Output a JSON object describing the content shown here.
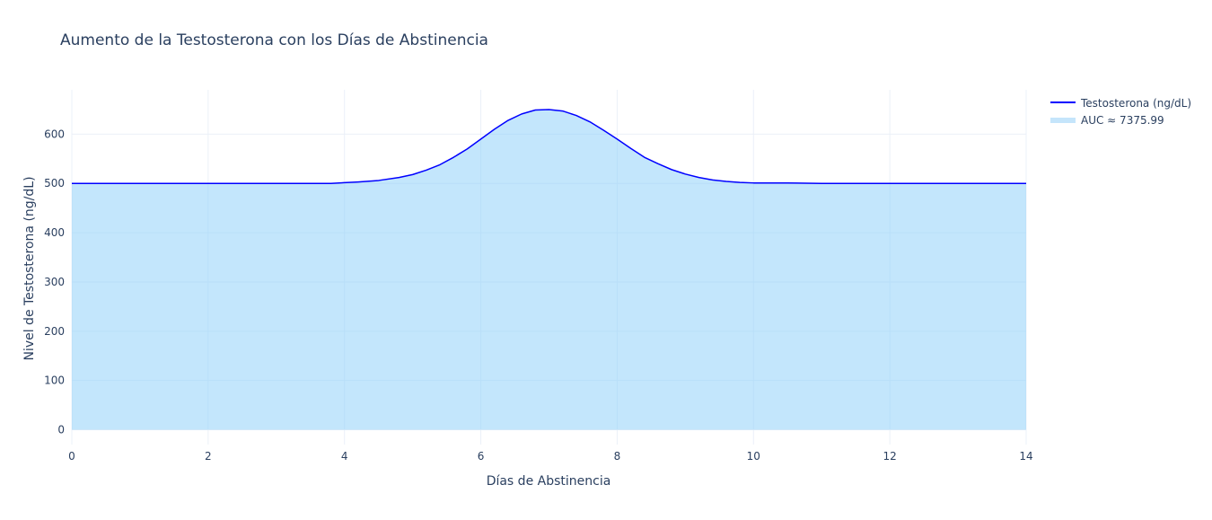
{
  "chart_data": {
    "type": "area",
    "title": "Aumento de la Testosterona con los Días de Abstinencia",
    "xlabel": "Días de Abstinencia",
    "ylabel": "Nivel de Testosterona (ng/dL)",
    "xlim": [
      0,
      14
    ],
    "ylim": [
      -30,
      690
    ],
    "x_ticks": [
      0,
      2,
      4,
      6,
      8,
      10,
      12,
      14
    ],
    "y_ticks": [
      0,
      100,
      200,
      300,
      400,
      500,
      600
    ],
    "grid": true,
    "legend_position": "top-right",
    "series": [
      {
        "name": "Testosterona (ng/dL)",
        "color": "#0000ff",
        "x": [
          0,
          1,
          2,
          3,
          3.8,
          4.2,
          4.5,
          4.8,
          5.0,
          5.2,
          5.4,
          5.6,
          5.8,
          6.0,
          6.2,
          6.4,
          6.6,
          6.8,
          7.0,
          7.2,
          7.4,
          7.6,
          7.8,
          8.0,
          8.2,
          8.4,
          8.6,
          8.8,
          9.0,
          9.2,
          9.4,
          9.6,
          9.8,
          10.0,
          10.5,
          11.0,
          12.0,
          13.0,
          14.0
        ],
        "y": [
          500,
          500,
          500,
          500,
          500,
          503,
          506,
          512,
          518,
          527,
          538,
          553,
          570,
          590,
          610,
          628,
          641,
          649,
          650,
          647,
          638,
          625,
          608,
          590,
          571,
          553,
          540,
          528,
          519,
          512,
          507,
          504,
          502,
          501,
          501,
          500,
          500,
          500,
          500
        ]
      },
      {
        "name": "AUC ≈ 7375.99",
        "color": "#87cefa",
        "fill_opacity": 0.5,
        "fill_to": "zero_y",
        "same_x_as_series": 0
      }
    ]
  }
}
